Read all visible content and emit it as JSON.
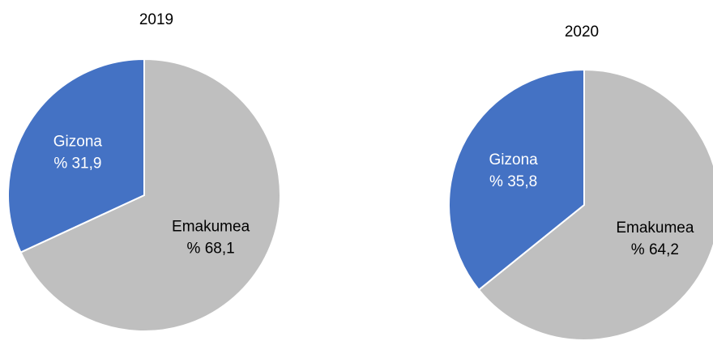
{
  "chart_data": [
    {
      "type": "pie",
      "title": "2019",
      "categories": [
        "Emakumea",
        "Gizona"
      ],
      "values": [
        68.1,
        31.9
      ],
      "value_labels": [
        "% 68,1",
        "% 31,9"
      ],
      "colors": [
        "#bfbfbf",
        "#4472c4"
      ]
    },
    {
      "type": "pie",
      "title": "2020",
      "categories": [
        "Emakumea",
        "Gizona"
      ],
      "values": [
        64.2,
        35.8
      ],
      "value_labels": [
        "% 64,2",
        "% 35,8"
      ],
      "colors": [
        "#bfbfbf",
        "#4472c4"
      ]
    }
  ]
}
